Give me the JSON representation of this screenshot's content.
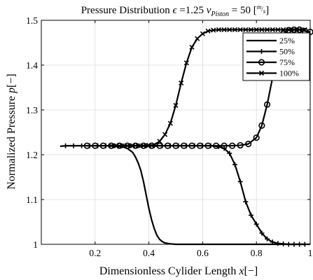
{
  "chart_data": {
    "type": "line",
    "title_parts": {
      "main": "Pressure Distribution ",
      "epsilon_symbol": "ϵ",
      "epsilon_value": " =1.25 ",
      "v_symbol": "v",
      "v_subscript": "Piston",
      "v_value": " = 50 [",
      "unit_num": "m",
      "unit_den": "s",
      "unit_close": "]"
    },
    "xlabel_parts": {
      "text": "Dimensionless Cylider Length ",
      "var": "x",
      "unit": "[−]"
    },
    "ylabel_parts": {
      "text": "Normalized Pressure ",
      "var": "p",
      "unit": "[−]"
    },
    "xlim": [
      0,
      1
    ],
    "ylim": [
      1,
      1.5
    ],
    "xticks": [
      0.2,
      0.4,
      0.6,
      0.8,
      1
    ],
    "xtick_labels": [
      "0.2",
      "0.4",
      "0.6",
      "0.8",
      "1"
    ],
    "yticks": [
      1,
      1.1,
      1.2,
      1.3,
      1.4,
      1.5
    ],
    "ytick_labels": [
      "1",
      "1.1",
      "1.2",
      "1.3",
      "1.4",
      "1.5"
    ],
    "grid": true,
    "legend_position": "top-right",
    "series": [
      {
        "name": "25%",
        "marker": "none",
        "x": [
          0.07,
          0.1,
          0.15,
          0.2,
          0.25,
          0.3,
          0.32,
          0.34,
          0.35,
          0.36,
          0.37,
          0.38,
          0.39,
          0.4,
          0.41,
          0.42,
          0.43,
          0.44,
          0.45,
          0.46,
          0.47,
          0.48,
          0.5,
          0.55,
          0.6,
          0.7,
          0.8,
          0.9,
          1.0
        ],
        "y": [
          1.219,
          1.22,
          1.22,
          1.22,
          1.22,
          1.218,
          1.214,
          1.205,
          1.195,
          1.182,
          1.165,
          1.14,
          1.11,
          1.08,
          1.055,
          1.035,
          1.02,
          1.011,
          1.006,
          1.003,
          1.002,
          1.001,
          1.0,
          1.0,
          1.0,
          1.0,
          1.0,
          1.0,
          1.0
        ]
      },
      {
        "name": "50%",
        "marker": "plus",
        "x": [
          0.09,
          0.12,
          0.15,
          0.18,
          0.21,
          0.24,
          0.27,
          0.3,
          0.33,
          0.36,
          0.39,
          0.42,
          0.45,
          0.48,
          0.51,
          0.54,
          0.57,
          0.6,
          0.63,
          0.66,
          0.68,
          0.7,
          0.72,
          0.74,
          0.76,
          0.78,
          0.8,
          0.82,
          0.84,
          0.86,
          0.88,
          0.9,
          0.92,
          0.94,
          0.96,
          0.98
        ],
        "y": [
          1.22,
          1.22,
          1.22,
          1.22,
          1.22,
          1.22,
          1.22,
          1.22,
          1.22,
          1.22,
          1.22,
          1.22,
          1.22,
          1.22,
          1.22,
          1.22,
          1.22,
          1.22,
          1.22,
          1.218,
          1.214,
          1.203,
          1.178,
          1.14,
          1.095,
          1.065,
          1.045,
          1.025,
          1.012,
          1.005,
          1.002,
          1.001,
          1.0,
          1.0,
          1.0,
          1.0
        ]
      },
      {
        "name": "75%",
        "marker": "circle",
        "x": [
          0.17,
          0.2,
          0.23,
          0.26,
          0.29,
          0.32,
          0.35,
          0.38,
          0.41,
          0.44,
          0.47,
          0.5,
          0.53,
          0.56,
          0.59,
          0.62,
          0.65,
          0.68,
          0.71,
          0.74,
          0.77,
          0.8,
          0.82,
          0.84,
          0.86,
          0.88,
          0.9,
          0.92,
          0.94,
          0.96,
          0.98,
          1.0
        ],
        "y": [
          1.22,
          1.22,
          1.22,
          1.22,
          1.22,
          1.22,
          1.22,
          1.22,
          1.22,
          1.22,
          1.22,
          1.22,
          1.22,
          1.22,
          1.22,
          1.22,
          1.22,
          1.22,
          1.22,
          1.221,
          1.224,
          1.238,
          1.265,
          1.312,
          1.372,
          1.43,
          1.47,
          1.478,
          1.479,
          1.479,
          1.476,
          1.474
        ]
      },
      {
        "name": "100%",
        "marker": "x",
        "x": [
          0.26,
          0.28,
          0.3,
          0.32,
          0.34,
          0.36,
          0.38,
          0.4,
          0.42,
          0.44,
          0.46,
          0.48,
          0.5,
          0.52,
          0.54,
          0.56,
          0.58,
          0.6,
          0.62,
          0.64,
          0.66,
          0.68,
          0.7,
          0.72,
          0.74,
          0.76,
          0.78,
          0.8,
          0.82,
          0.84,
          0.86,
          0.88,
          0.9,
          0.92,
          0.94,
          0.96,
          0.98
        ],
        "y": [
          1.22,
          1.22,
          1.22,
          1.22,
          1.22,
          1.22,
          1.22,
          1.221,
          1.222,
          1.23,
          1.245,
          1.27,
          1.31,
          1.36,
          1.405,
          1.44,
          1.459,
          1.47,
          1.476,
          1.478,
          1.479,
          1.479,
          1.479,
          1.479,
          1.479,
          1.479,
          1.479,
          1.479,
          1.479,
          1.479,
          1.479,
          1.479,
          1.479,
          1.479,
          1.479,
          1.479,
          1.479
        ]
      }
    ],
    "colors": {
      "line": "#000000",
      "grid": "#dcdcdc",
      "axes": "#000000",
      "background": "#ffffff"
    }
  }
}
